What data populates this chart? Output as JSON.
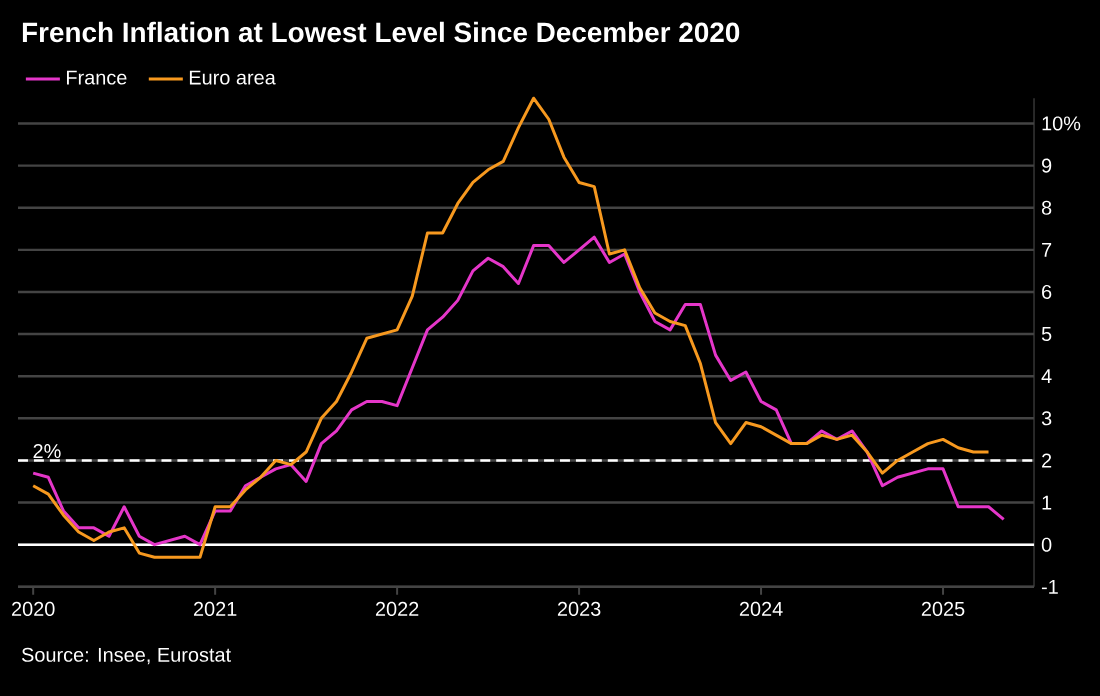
{
  "chart_data": {
    "type": "line",
    "title": "French Inflation at Lowest Level Since December 2020",
    "annotations": [
      "Source: Insee, Eurostat"
    ],
    "x": [
      "2020-01",
      "2020-02",
      "2020-03",
      "2020-04",
      "2020-05",
      "2020-06",
      "2020-07",
      "2020-08",
      "2020-09",
      "2020-10",
      "2020-11",
      "2020-12",
      "2021-01",
      "2021-02",
      "2021-03",
      "2021-04",
      "2021-05",
      "2021-06",
      "2021-07",
      "2021-08",
      "2021-09",
      "2021-10",
      "2021-11",
      "2021-12",
      "2022-01",
      "2022-02",
      "2022-03",
      "2022-04",
      "2022-05",
      "2022-06",
      "2022-07",
      "2022-08",
      "2022-09",
      "2022-10",
      "2022-11",
      "2022-12",
      "2023-01",
      "2023-02",
      "2023-03",
      "2023-04",
      "2023-05",
      "2023-06",
      "2023-07",
      "2023-08",
      "2023-09",
      "2023-10",
      "2023-11",
      "2023-12",
      "2024-01",
      "2024-02",
      "2024-03",
      "2024-04",
      "2024-05",
      "2024-06",
      "2024-07",
      "2024-08",
      "2024-09",
      "2024-10",
      "2024-11",
      "2024-12",
      "2025-01",
      "2025-02",
      "2025-03",
      "2025-04",
      "2025-05"
    ],
    "series": [
      {
        "name": "France",
        "color": "#e536c9",
        "values": [
          1.7,
          1.6,
          0.8,
          0.4,
          0.4,
          0.2,
          0.9,
          0.2,
          0.0,
          0.1,
          0.2,
          0.0,
          0.8,
          0.8,
          1.4,
          1.6,
          1.8,
          1.9,
          1.5,
          2.4,
          2.7,
          3.2,
          3.4,
          3.4,
          3.3,
          4.2,
          5.1,
          5.4,
          5.8,
          6.5,
          6.8,
          6.6,
          6.2,
          7.1,
          7.1,
          6.7,
          7.0,
          7.3,
          6.7,
          6.9,
          6.0,
          5.3,
          5.1,
          5.7,
          5.7,
          4.5,
          3.9,
          4.1,
          3.4,
          3.2,
          2.4,
          2.4,
          2.7,
          2.5,
          2.7,
          2.2,
          1.4,
          1.6,
          1.7,
          1.8,
          1.8,
          0.9,
          0.9,
          0.9,
          0.6
        ]
      },
      {
        "name": "Euro area",
        "color": "#f7991f",
        "values": [
          1.4,
          1.2,
          0.7,
          0.3,
          0.1,
          0.3,
          0.4,
          -0.2,
          -0.3,
          -0.3,
          -0.3,
          -0.3,
          0.9,
          0.9,
          1.3,
          1.6,
          2.0,
          1.9,
          2.2,
          3.0,
          3.4,
          4.1,
          4.9,
          5.0,
          5.1,
          5.9,
          7.4,
          7.4,
          8.1,
          8.6,
          8.9,
          9.1,
          9.9,
          10.6,
          10.1,
          9.2,
          8.6,
          8.5,
          6.9,
          7.0,
          6.1,
          5.5,
          5.3,
          5.2,
          4.3,
          2.9,
          2.4,
          2.9,
          2.8,
          2.6,
          2.4,
          2.4,
          2.6,
          2.5,
          2.6,
          2.2,
          1.7,
          2.0,
          2.2,
          2.4,
          2.5,
          2.3,
          2.2,
          2.2,
          null
        ]
      }
    ],
    "xlim": [
      "2019-12",
      "2025-07"
    ],
    "xticks": [
      "2020",
      "2021",
      "2022",
      "2023",
      "2024",
      "2025"
    ],
    "ylim": [
      -1,
      10.6
    ],
    "yticks": [
      -1,
      {
        "value": 0,
        "label": "0"
      },
      1,
      2,
      3,
      4,
      5,
      6,
      7,
      8,
      9,
      {
        "value": 10,
        "label": "10%"
      }
    ],
    "grid": "y",
    "legend": "top left",
    "marker": "none",
    "line_style": "solid",
    "ref_lines": [
      {
        "axis": "y",
        "value": 2,
        "label": "2%",
        "color": "#ffffff",
        "line_style": "dashed"
      },
      {
        "axis": "y",
        "value": 0,
        "color": "#ffffff",
        "line_style": "solid"
      }
    ]
  }
}
